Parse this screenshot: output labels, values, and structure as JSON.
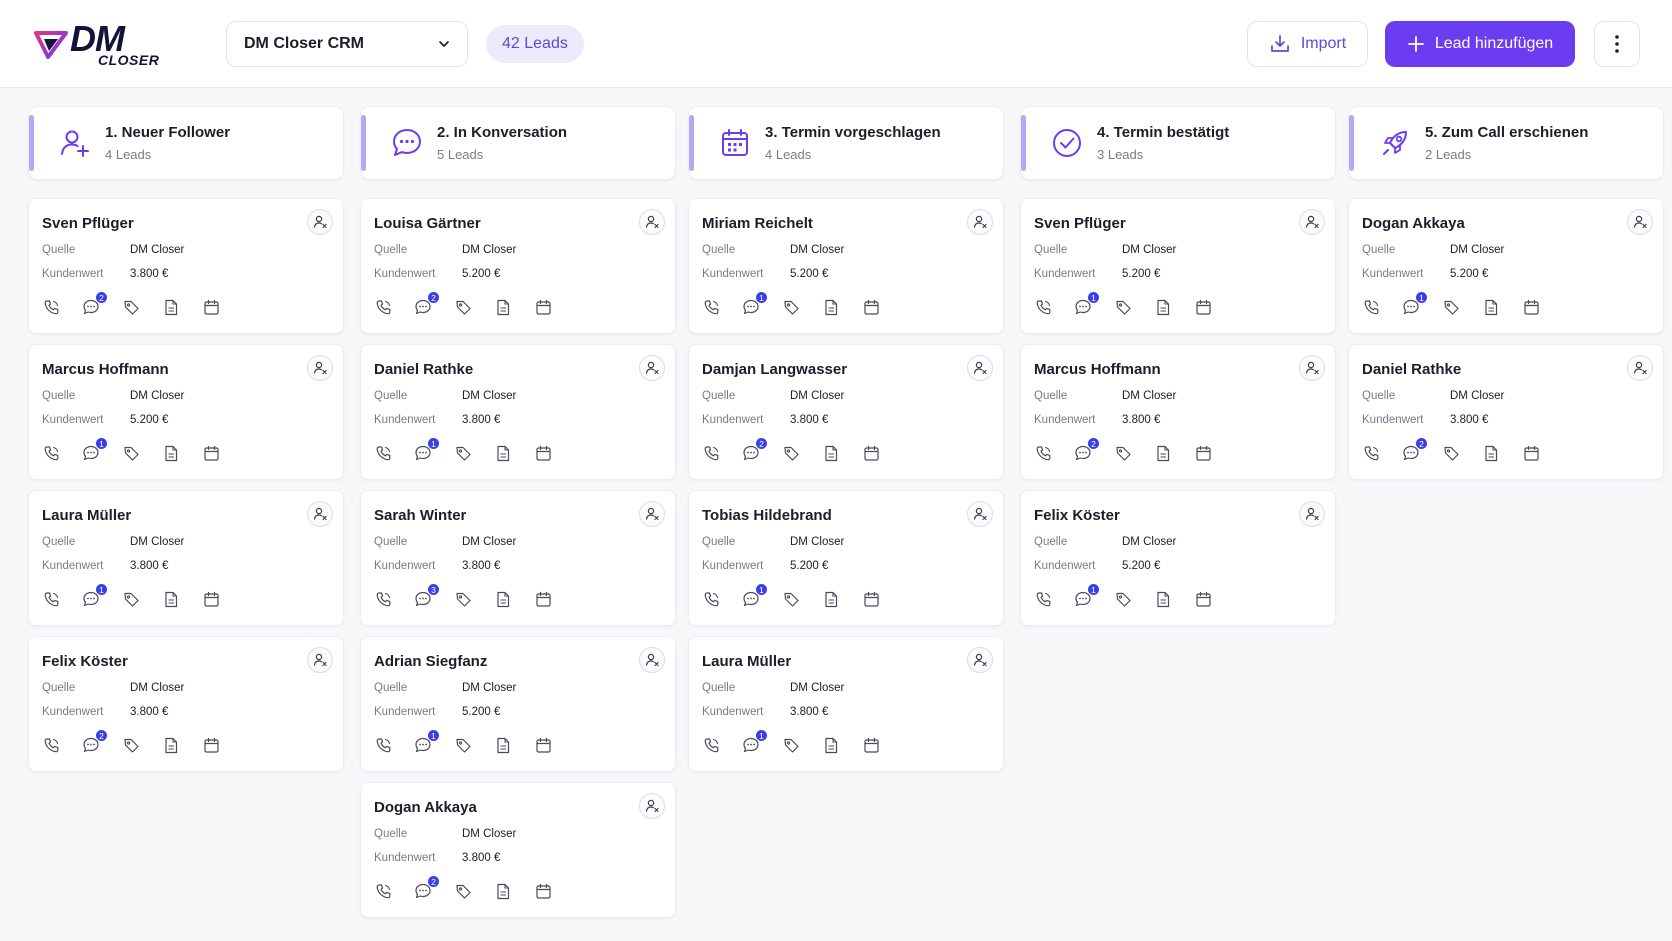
{
  "header": {
    "logo_main": "DM",
    "logo_sub": "CLOSER",
    "crm_name": "DM Closer CRM",
    "leads_total": "42 Leads",
    "import_label": "Import",
    "add_label": "Lead hinzufügen"
  },
  "labels": {
    "source": "Quelle",
    "value": "Kundenwert"
  },
  "colors": {
    "accent": "#6b3cf0",
    "badge": "#3b3fe8",
    "stripe": "#b4a8f5"
  },
  "columns": [
    {
      "title": "1. Neuer Follower",
      "count": "4 Leads",
      "icon": "user-plus-icon",
      "cards": [
        {
          "name": "Sven Pflüger",
          "source": "DM Closer",
          "value": "3.800 €",
          "messages": "2"
        },
        {
          "name": "Marcus Hoffmann",
          "source": "DM Closer",
          "value": "5.200 €",
          "messages": "1"
        },
        {
          "name": "Laura Müller",
          "source": "DM Closer",
          "value": "3.800 €",
          "messages": "1"
        },
        {
          "name": "Felix Köster",
          "source": "DM Closer",
          "value": "3.800 €",
          "messages": "2"
        }
      ]
    },
    {
      "title": "2. In Konversation",
      "count": "5 Leads",
      "icon": "chat-icon",
      "cards": [
        {
          "name": "Louisa Gärtner",
          "source": "DM Closer",
          "value": "5.200 €",
          "messages": "2"
        },
        {
          "name": "Daniel Rathke",
          "source": "DM Closer",
          "value": "3.800 €",
          "messages": "1"
        },
        {
          "name": "Sarah Winter",
          "source": "DM Closer",
          "value": "3.800 €",
          "messages": "3"
        },
        {
          "name": "Adrian Siegfanz",
          "source": "DM Closer",
          "value": "5.200 €",
          "messages": "1"
        },
        {
          "name": "Dogan Akkaya",
          "source": "DM Closer",
          "value": "3.800 €",
          "messages": "2"
        }
      ]
    },
    {
      "title": "3. Termin vorgeschlagen",
      "count": "4 Leads",
      "icon": "calendar-icon",
      "cards": [
        {
          "name": "Miriam Reichelt",
          "source": "DM Closer",
          "value": "5.200 €",
          "messages": "1"
        },
        {
          "name": "Damjan Langwasser",
          "source": "DM Closer",
          "value": "3.800 €",
          "messages": "2"
        },
        {
          "name": "Tobias Hildebrand",
          "source": "DM Closer",
          "value": "5.200 €",
          "messages": "1"
        },
        {
          "name": "Laura Müller",
          "source": "DM Closer",
          "value": "3.800 €",
          "messages": "1"
        }
      ]
    },
    {
      "title": "4. Termin bestätigt",
      "count": "3 Leads",
      "icon": "check-circle-icon",
      "cards": [
        {
          "name": "Sven Pflüger",
          "source": "DM Closer",
          "value": "5.200 €",
          "messages": "1"
        },
        {
          "name": "Marcus Hoffmann",
          "source": "DM Closer",
          "value": "3.800 €",
          "messages": "2"
        },
        {
          "name": "Felix Köster",
          "source": "DM Closer",
          "value": "5.200 €",
          "messages": "1"
        }
      ]
    },
    {
      "title": "5. Zum Call erschienen",
      "count": "2 Leads",
      "icon": "rocket-icon",
      "cards": [
        {
          "name": "Dogan Akkaya",
          "source": "DM Closer",
          "value": "5.200 €",
          "messages": "1"
        },
        {
          "name": "Daniel Rathke",
          "source": "DM Closer",
          "value": "3.800 €",
          "messages": "2"
        }
      ]
    }
  ]
}
